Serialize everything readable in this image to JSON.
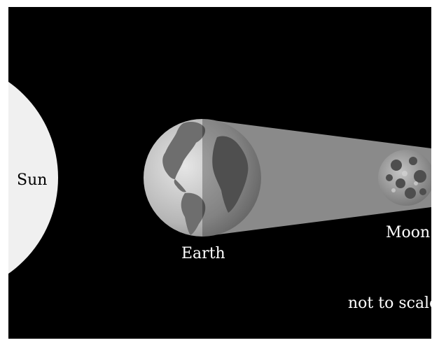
{
  "labels": {
    "sun": "Sun",
    "earth": "Earth",
    "moon": "Moon",
    "scale_note": "not to scale"
  },
  "colors": {
    "space": "#000000",
    "sun": "#f0f0f0",
    "shadow": "#8a8a8a",
    "earth_ocean": "#bfbfbf",
    "earth_land": "#6e6e6e",
    "moon": "#9a9a9a"
  }
}
